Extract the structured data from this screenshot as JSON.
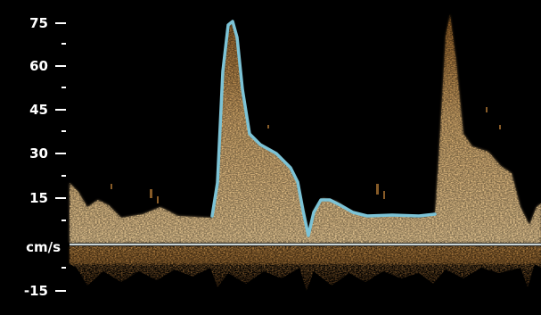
{
  "spectral_display": {
    "scale": {
      "tick_labels": [
        "75",
        "60",
        "45",
        "30",
        "15",
        "-15"
      ],
      "tick_values": [
        75,
        60,
        45,
        30,
        15,
        -15
      ],
      "unit_label": "cm/s"
    },
    "colors": {
      "background": "#000000",
      "spectrum_core": "#f3d29a",
      "spectrum_mid": "#c68a3a",
      "spectrum_edge": "#6b3f14",
      "envelope_trace": "#7cc3d6",
      "baseline": "#c9d4d6"
    }
  }
}
